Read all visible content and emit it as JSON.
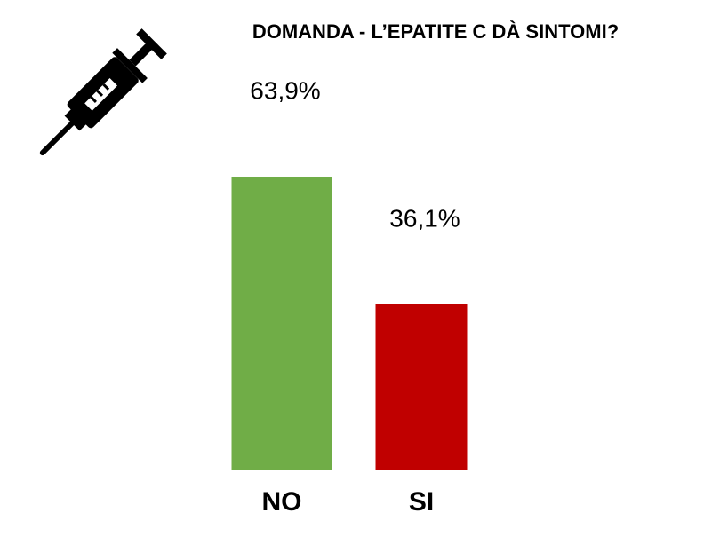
{
  "chart_data": {
    "type": "bar",
    "title": "DOMANDA - L’EPATITE C DÀ SINTOMI?",
    "categories": [
      "NO",
      "SI"
    ],
    "values": [
      63.9,
      36.1
    ],
    "value_labels": [
      "63,9%",
      "36,1%"
    ],
    "colors": [
      "#70ad47",
      "#c00000"
    ]
  }
}
